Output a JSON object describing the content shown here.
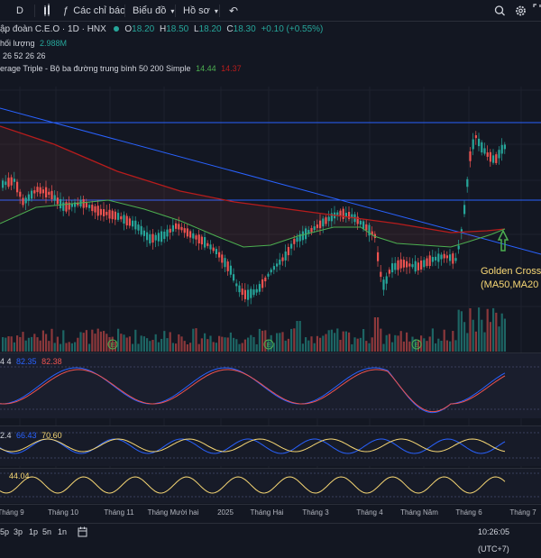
{
  "toolbar": {
    "interval": "D",
    "indicators_label": "Các chỉ báo",
    "chart_type_label": "Biểu đồ",
    "profile_label": "Hồ sơ"
  },
  "symbol": {
    "title": "ập đoàn C.E.O · 1D · HNX",
    "open_label": "O",
    "open": "18.20",
    "high_label": "H",
    "high": "18.50",
    "low_label": "L",
    "low": "18.20",
    "close_label": "C",
    "close": "18.30",
    "change": "+0.10 (+0.55%)"
  },
  "volume_legend": {
    "name": "hối lượng",
    "value": "2.988M"
  },
  "ma_legend_params": "26 52 26 26",
  "ma_triple": {
    "name": "erage Triple - Bộ ba đường trung bình 50 200 Simple",
    "v1": "14.44",
    "v2": "14.37"
  },
  "ind1": {
    "prefix": "4 4",
    "v1": "82.35",
    "v2": "82.38"
  },
  "ind2": {
    "prefix": "2.4",
    "v1": "66.43",
    "v2": "70.60"
  },
  "ind3": {
    "v1": "44.04"
  },
  "annotation": {
    "line1": "Golden Cross",
    "line2": "(MA50,MA20"
  },
  "earnings_marker": "E",
  "time_axis": [
    "Tháng 9",
    "Tháng 10",
    "Tháng 11",
    "Tháng Mười hai",
    "2025",
    "Tháng Hai",
    "Tháng 3",
    "Tháng 4",
    "Tháng Năm",
    "Tháng 6",
    "Tháng 7"
  ],
  "ranges": [
    "5p",
    "3p",
    "1p",
    "5n",
    "1n"
  ],
  "clock": "10:26:05 (UTC+7)",
  "colors": {
    "up": "#26a69a",
    "down": "#ef5350",
    "ma50": "#4caf50",
    "ma200": "#b71c1c",
    "trend": "#2962ff",
    "annotation": "#f7d774"
  },
  "icons": [
    "chart-type-icon",
    "indicators-icon",
    "undo-icon",
    "search-icon",
    "settings-icon",
    "fullscreen-icon",
    "calendar-icon",
    "eye-icon"
  ]
}
